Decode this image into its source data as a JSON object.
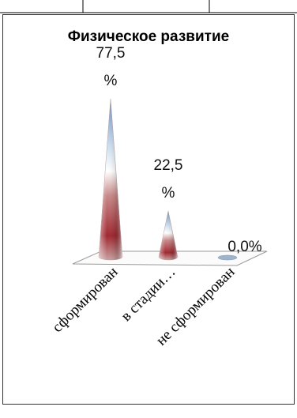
{
  "chart_data": {
    "type": "cone",
    "title": "Физическое развитие",
    "categories": [
      "сформирован",
      "в стадии…",
      "не сформирован"
    ],
    "values": [
      77.5,
      22.5,
      0.0
    ],
    "value_labels": [
      "77,5 %",
      "22,5 %",
      "0,0%"
    ]
  }
}
